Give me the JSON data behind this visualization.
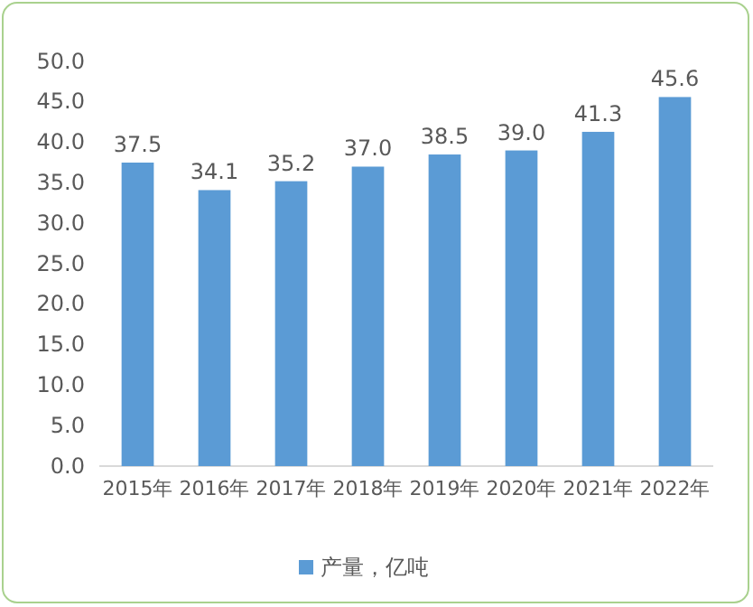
{
  "chart_data": {
    "type": "bar",
    "categories": [
      "2015年",
      "2016年",
      "2017年",
      "2018年",
      "2019年",
      "2020年",
      "2021年",
      "2022年"
    ],
    "series": [
      {
        "name": "产量，亿吨",
        "color": "#5b9bd5",
        "values": [
          37.5,
          34.1,
          35.2,
          37.0,
          38.5,
          39.0,
          41.3,
          45.6
        ],
        "value_labels": [
          "37.5",
          "34.1",
          "35.2",
          "37.0",
          "38.5",
          "39.0",
          "41.3",
          "45.6"
        ]
      }
    ],
    "ylim": [
      0,
      50
    ],
    "yticks": [
      {
        "value": 0,
        "label": "0.0"
      },
      {
        "value": 5,
        "label": "5.0"
      },
      {
        "value": 10,
        "label": "10.0"
      },
      {
        "value": 15,
        "label": "15.0"
      },
      {
        "value": 20,
        "label": "20.0"
      },
      {
        "value": 25,
        "label": "25.0"
      },
      {
        "value": 30,
        "label": "30.0"
      },
      {
        "value": 35,
        "label": "35.0"
      },
      {
        "value": 40,
        "label": "40.0"
      },
      {
        "value": 45,
        "label": "45.0"
      },
      {
        "value": 50,
        "label": "50.0"
      }
    ],
    "legend": "bottom"
  }
}
